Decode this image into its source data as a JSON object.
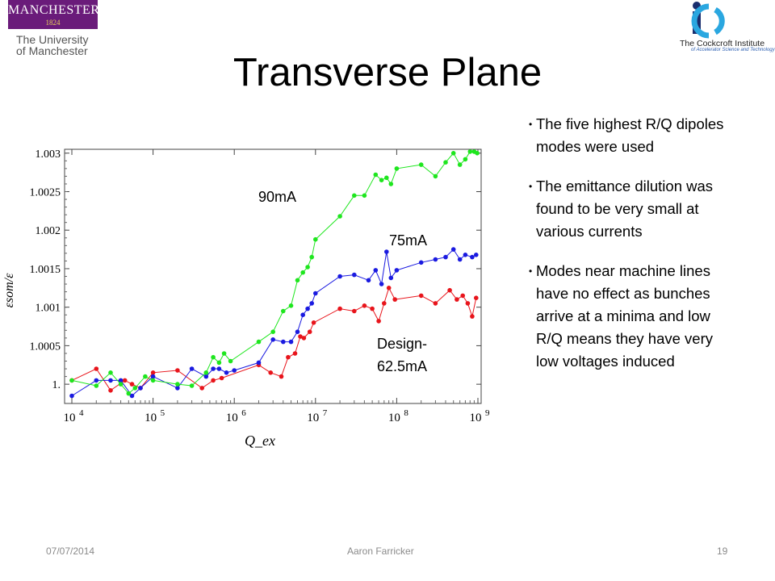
{
  "title": "Transverse Plane",
  "logos": {
    "manchester_name": "MANCHESTER",
    "manchester_year": "1824",
    "university_line1": "The University",
    "university_line2": "of Manchester",
    "cockcroft_name": "The Cockcroft Institute",
    "cockcroft_sub": "of Accelerator Science and Technology"
  },
  "bullets": [
    "The five highest R/Q dipoles modes were used",
    "The emittance dilution was found to be very small at various currents",
    "Modes near machine lines have no effect as bunches arrive at a minima and low R/Q means they have very low voltages induced"
  ],
  "footer": {
    "date": "07/07/2014",
    "author": "Aaron Farricker",
    "page": "19"
  },
  "chart_data": {
    "type": "line",
    "xlabel": "Q_ex",
    "ylabel": "εsom/ε",
    "xscale": "log",
    "xlim": [
      10000,
      1000000000
    ],
    "ylim": [
      0.99975,
      1.00305
    ],
    "x_ticks": [
      10000,
      100000,
      1000000,
      10000000,
      100000000,
      1000000000
    ],
    "x_tick_labels": [
      "10",
      "10",
      "10",
      "10",
      "10",
      "10"
    ],
    "x_tick_exponents": [
      "4",
      "5",
      "6",
      "7",
      "8",
      "9"
    ],
    "y_ticks": [
      1.0,
      1.0005,
      1.001,
      1.0015,
      1.002,
      1.0025,
      1.003
    ],
    "y_tick_labels": [
      "1.",
      "1.0005",
      "1.001",
      "1.0015",
      "1.002",
      "1.0025",
      "1.003"
    ],
    "grid": false,
    "series": [
      {
        "name": "Design-62.5mA",
        "color": "#e8141b",
        "points": [
          [
            10000,
            1.00005
          ],
          [
            20000,
            1.0002
          ],
          [
            30000,
            0.99992
          ],
          [
            45000,
            1.00005
          ],
          [
            55000,
            1.0
          ],
          [
            70000,
            0.99995
          ],
          [
            100000,
            1.00015
          ],
          [
            200000,
            1.00018
          ],
          [
            400000,
            0.99995
          ],
          [
            550000,
            1.00005
          ],
          [
            700000,
            1.00008
          ],
          [
            2000000,
            1.00025
          ],
          [
            2800000,
            1.00015
          ],
          [
            3800000,
            1.0001
          ],
          [
            4600000,
            1.00035
          ],
          [
            5600000,
            1.0004
          ],
          [
            6500000,
            1.00062
          ],
          [
            7200000,
            1.0006
          ],
          [
            8500000,
            1.00068
          ],
          [
            9500000,
            1.0008
          ],
          [
            20000000,
            1.00098
          ],
          [
            30000000,
            1.00095
          ],
          [
            40000000,
            1.00102
          ],
          [
            50000000,
            1.00098
          ],
          [
            60000000,
            1.00082
          ],
          [
            70000000,
            1.00105
          ],
          [
            80000000,
            1.00125
          ],
          [
            95000000,
            1.0011
          ],
          [
            200000000,
            1.00115
          ],
          [
            300000000,
            1.00105
          ],
          [
            450000000,
            1.00122
          ],
          [
            550000000,
            1.0011
          ],
          [
            650000000,
            1.00115
          ],
          [
            750000000,
            1.00105
          ],
          [
            850000000,
            1.00088
          ],
          [
            950000000,
            1.00112
          ]
        ]
      },
      {
        "name": "75mA",
        "color": "#1a1ae0",
        "points": [
          [
            10000,
            0.99985
          ],
          [
            20000,
            1.00005
          ],
          [
            30000,
            1.00005
          ],
          [
            40000,
            1.00005
          ],
          [
            55000,
            0.99985
          ],
          [
            70000,
            0.99995
          ],
          [
            100000,
            1.0001
          ],
          [
            200000,
            0.99995
          ],
          [
            300000,
            1.0002
          ],
          [
            450000,
            1.0001
          ],
          [
            550000,
            1.0002
          ],
          [
            650000,
            1.0002
          ],
          [
            800000,
            1.00015
          ],
          [
            1000000,
            1.00018
          ],
          [
            2000000,
            1.00028
          ],
          [
            3000000,
            1.00058
          ],
          [
            4000000,
            1.00055
          ],
          [
            5000000,
            1.00055
          ],
          [
            6000000,
            1.00068
          ],
          [
            7000000,
            1.0009
          ],
          [
            8000000,
            1.00098
          ],
          [
            9000000,
            1.00105
          ],
          [
            10000000,
            1.00118
          ],
          [
            20000000,
            1.0014
          ],
          [
            30000000,
            1.00142
          ],
          [
            45000000,
            1.00135
          ],
          [
            55000000,
            1.00148
          ],
          [
            65000000,
            1.0013
          ],
          [
            75000000,
            1.00172
          ],
          [
            85000000,
            1.00138
          ],
          [
            100000000,
            1.00148
          ],
          [
            200000000,
            1.00158
          ],
          [
            300000000,
            1.00162
          ],
          [
            400000000,
            1.00165
          ],
          [
            500000000,
            1.00175
          ],
          [
            600000000,
            1.00162
          ],
          [
            700000000,
            1.00168
          ],
          [
            850000000,
            1.00165
          ],
          [
            950000000,
            1.00168
          ]
        ]
      },
      {
        "name": "90mA",
        "color": "#1ee61e",
        "points": [
          [
            10000,
            1.00005
          ],
          [
            20000,
            0.99998
          ],
          [
            30000,
            1.00015
          ],
          [
            40000,
            1.0
          ],
          [
            50000,
            0.99988
          ],
          [
            60000,
            0.99995
          ],
          [
            80000,
            1.0001
          ],
          [
            100000,
            1.00005
          ],
          [
            200000,
            1.0
          ],
          [
            300000,
            0.99998
          ],
          [
            450000,
            1.00015
          ],
          [
            550000,
            1.00035
          ],
          [
            650000,
            1.00028
          ],
          [
            750000,
            1.0004
          ],
          [
            900000,
            1.0003
          ],
          [
            2000000,
            1.00055
          ],
          [
            3000000,
            1.00068
          ],
          [
            4000000,
            1.00095
          ],
          [
            5000000,
            1.00102
          ],
          [
            6000000,
            1.00135
          ],
          [
            7000000,
            1.00145
          ],
          [
            8000000,
            1.00152
          ],
          [
            9000000,
            1.00165
          ],
          [
            10000000,
            1.00188
          ],
          [
            20000000,
            1.00218
          ],
          [
            30000000,
            1.00245
          ],
          [
            40000000,
            1.00245
          ],
          [
            55000000,
            1.00272
          ],
          [
            65000000,
            1.00265
          ],
          [
            75000000,
            1.00268
          ],
          [
            85000000,
            1.0026
          ],
          [
            100000000,
            1.0028
          ],
          [
            200000000,
            1.00285
          ],
          [
            300000000,
            1.0027
          ],
          [
            400000000,
            1.00288
          ],
          [
            500000000,
            1.003
          ],
          [
            600000000,
            1.00285
          ],
          [
            700000000,
            1.00292
          ],
          [
            800000000,
            1.00302
          ],
          [
            900000000,
            1.00302
          ],
          [
            980000000,
            1.003
          ]
        ]
      }
    ],
    "annotations": [
      {
        "text": "90mA",
        "series": "90mA"
      },
      {
        "text": "75mA",
        "series": "75mA"
      },
      {
        "text_line1": "Design-",
        "text_line2": "62.5mA",
        "series": "Design-62.5mA"
      }
    ]
  }
}
